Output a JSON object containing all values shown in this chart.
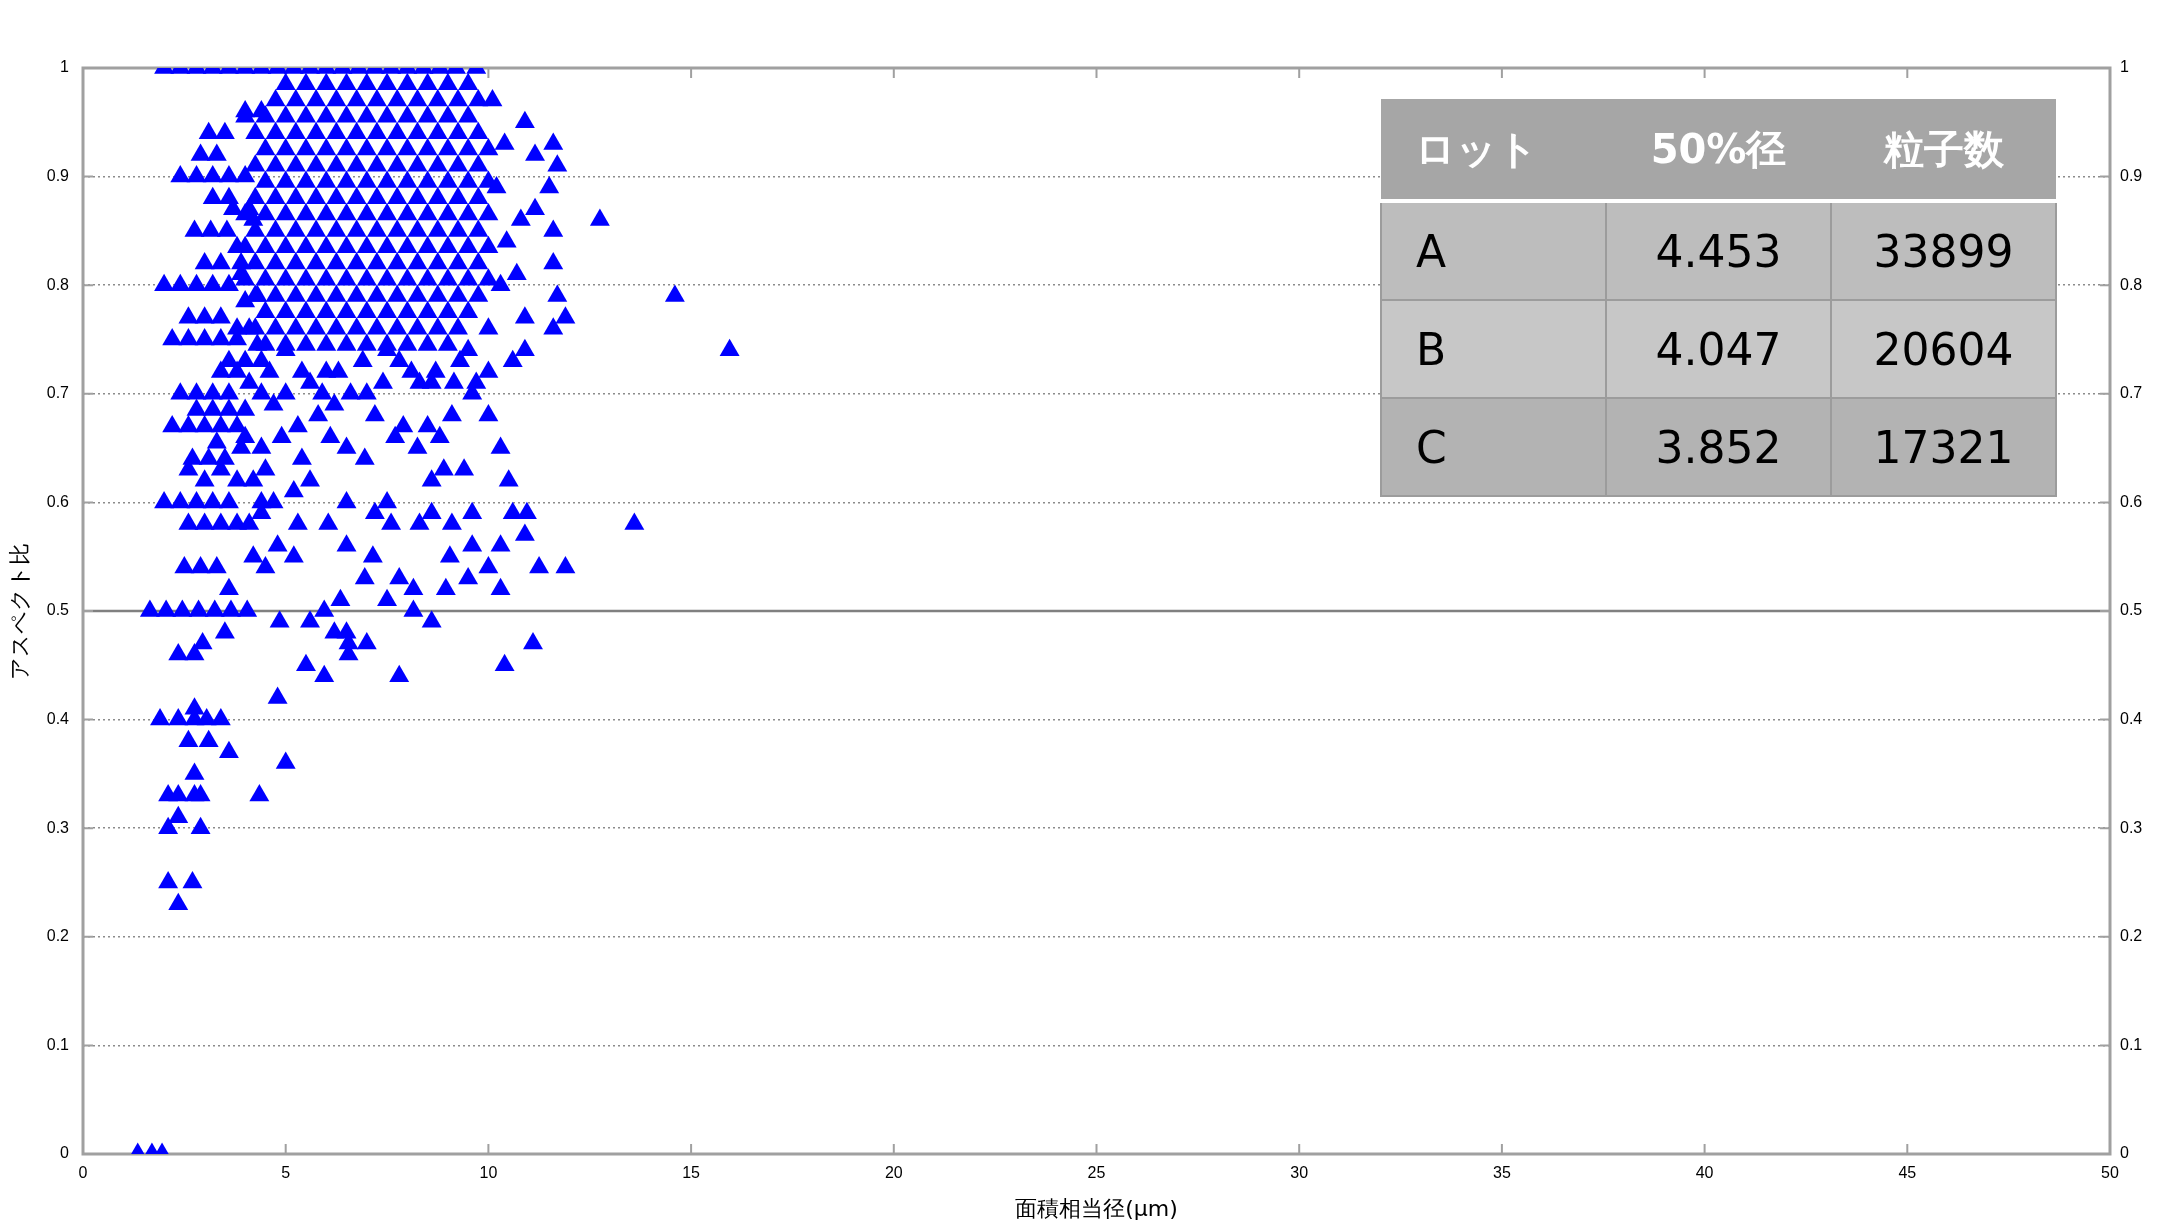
{
  "chart_data": [
    {
      "type": "scatter",
      "xlabel": "面積相当径(μm)",
      "ylabel": "アスペクト比",
      "color": "#0000ff",
      "marker": "triangle",
      "x": [
        2.0,
        2.4,
        2.8,
        3.2,
        3.6,
        4.0,
        4.4,
        4.8,
        5.2,
        5.6,
        6.0,
        6.4,
        6.8,
        7.2,
        7.6,
        8.0,
        8.4,
        8.8,
        9.2,
        9.7,
        4.0,
        4.4,
        3.1,
        3.5,
        2.9,
        3.3,
        2.4,
        2.8,
        3.2,
        3.6,
        4.0,
        3.2,
        3.6,
        2.75,
        3.15,
        3.55,
        3.0,
        3.4,
        2.0,
        2.4,
        2.8,
        3.2,
        3.6,
        2.6,
        3.0,
        3.4,
        2.2,
        2.6,
        3.0,
        3.4,
        3.8,
        3.6,
        4.0,
        2.4,
        2.8,
        3.2,
        3.6,
        2.2,
        2.6,
        3.0,
        3.4,
        3.8,
        2.7,
        3.1,
        3.5,
        3.0,
        3.8,
        2.0,
        2.4,
        2.8,
        3.2,
        3.6,
        2.6,
        3.0,
        3.4,
        3.8,
        4.2,
        3.9,
        4.3,
        4.1,
        4.4,
        4.0,
        4.4,
        4.2,
        4.6,
        3.7,
        4.1,
        3.8,
        3.9,
        4.0,
        3.8,
        4.3,
        4.4,
        3.4,
        3.8,
        4.1,
        2.8,
        3.2,
        3.6,
        4.0,
        3.3,
        3.9,
        2.6,
        3.4,
        4.4,
        4.1,
        5.0,
        5.5,
        6.0,
        6.5,
        7.0,
        7.5,
        8.0,
        8.5,
        9.0,
        9.5,
        4.75,
        5.25,
        5.75,
        6.25,
        6.75,
        7.25,
        7.75,
        8.25,
        8.75,
        9.25,
        9.75,
        4.0,
        4.5,
        5.0,
        5.5,
        6.0,
        6.5,
        7.0,
        7.5,
        8.0,
        8.5,
        9.0,
        9.5,
        4.25,
        4.75,
        5.25,
        5.75,
        6.25,
        6.75,
        7.25,
        7.75,
        8.25,
        8.75,
        9.25,
        9.75,
        4.5,
        5.0,
        5.5,
        6.0,
        6.5,
        7.0,
        7.5,
        8.0,
        8.5,
        9.0,
        9.5,
        10.0,
        4.25,
        4.75,
        5.25,
        5.75,
        6.25,
        6.75,
        7.25,
        7.75,
        8.25,
        8.75,
        9.25,
        9.75,
        4.5,
        5.0,
        5.5,
        6.0,
        6.5,
        7.0,
        7.5,
        8.0,
        8.5,
        9.0,
        9.5,
        10.0,
        4.25,
        4.75,
        5.25,
        5.75,
        6.25,
        6.75,
        7.25,
        7.75,
        8.25,
        8.75,
        9.25,
        9.75,
        4.0,
        4.5,
        5.0,
        5.5,
        6.0,
        6.5,
        7.0,
        7.5,
        8.0,
        8.5,
        9.0,
        9.5,
        10.0,
        4.25,
        4.75,
        5.25,
        5.75,
        6.25,
        6.75,
        7.25,
        7.75,
        8.25,
        8.75,
        9.25,
        9.75,
        4.0,
        4.5,
        5.0,
        5.5,
        6.0,
        6.5,
        7.0,
        7.5,
        8.0,
        8.5,
        9.0,
        9.5,
        10.0,
        4.25,
        4.75,
        5.25,
        5.75,
        6.25,
        6.75,
        7.25,
        7.75,
        8.25,
        8.75,
        9.25,
        9.75,
        4.0,
        4.5,
        5.0,
        5.5,
        6.0,
        6.5,
        7.0,
        7.5,
        8.0,
        8.5,
        9.0,
        9.5,
        10.0,
        4.25,
        4.75,
        5.25,
        5.75,
        6.25,
        6.75,
        7.25,
        7.75,
        8.25,
        8.75,
        9.25,
        9.75,
        4.5,
        5.0,
        5.5,
        6.0,
        6.5,
        7.0,
        7.5,
        8.0,
        8.5,
        9.0,
        9.5,
        4.25,
        4.75,
        5.25,
        5.75,
        6.25,
        6.75,
        7.25,
        7.75,
        8.25,
        8.75,
        9.25,
        4.5,
        5.0,
        5.5,
        6.0,
        6.5,
        7.0,
        7.5,
        8.0,
        8.5,
        9.0,
        5.0,
        6.0,
        6.9,
        7.5,
        8.1,
        8.7,
        9.3,
        10.1,
        10.4,
        10.45,
        10.2,
        10.3,
        10.0,
        12.75,
        14.6,
        15.95,
        10.9,
        11.6,
        11.7,
        11.15,
        11.5,
        11.15,
        11.6,
        11.6,
        11.7,
        11.9,
        11.6,
        10.9,
        10.9,
        10.6,
        10.7,
        10.8,
        10.0,
        10.3,
        10.5,
        9.6,
        9.1,
        10.0,
        10.95,
        5.8,
        5.3,
        6.1,
        6.5,
        6.95,
        7.2,
        7.9,
        8.5,
        7.7,
        8.25,
        8.8,
        8.9,
        9.4,
        5.6,
        6.5,
        7.5,
        8.6,
        4.7,
        5.2,
        4.5,
        4.4,
        9.6,
        10.6,
        8.6,
        7.2,
        6.05,
        5.4,
        6.6,
        7.4,
        9.15,
        8.3,
        9.7,
        5.6,
        4.7,
        4.2,
        4.8,
        5.2,
        4.5,
        6.5,
        7.15,
        9.05,
        9.6,
        10.3,
        10.9,
        5.95,
        6.35,
        6.95,
        7.5,
        7.8,
        8.15,
        8.95,
        9.5,
        10.0,
        10.3,
        11.25,
        11.9,
        13.6,
        4.85,
        5.6,
        6.2,
        6.5,
        6.55,
        6.55,
        7.0,
        8.15,
        8.6,
        5.5,
        5.95,
        7.8,
        10.4,
        11.1,
        4.8,
        5.0,
        4.35,
        5.3,
        7.6,
        8.3,
        9.1,
        2.5,
        2.9,
        3.3,
        3.6,
        1.65,
        2.05,
        2.45,
        2.85,
        3.25,
        3.65,
        4.05,
        3.5,
        2.35,
        2.75,
        2.95,
        1.9,
        2.35,
        2.75,
        3.05,
        3.4,
        2.75,
        2.6,
        3.1,
        3.6,
        2.75,
        2.1,
        2.35,
        2.75,
        2.9,
        2.35,
        2.1,
        2.9,
        2.1,
        2.7,
        2.35,
        1.35,
        1.7,
        1.95,
        5.0,
        5.4,
        6.3,
        5.9,
        4.9,
        6.2,
        7.0,
        7.8,
        8.6,
        9.5
      ],
      "values": [
        1,
        1,
        1,
        1,
        1,
        1,
        1,
        1,
        1,
        1,
        1,
        1,
        1,
        1,
        1,
        1,
        1,
        1,
        1,
        1,
        0.96,
        0.96,
        0.94,
        0.94,
        0.92,
        0.92,
        0.9,
        0.9,
        0.9,
        0.9,
        0.9,
        0.88,
        0.88,
        0.85,
        0.85,
        0.85,
        0.82,
        0.82,
        0.8,
        0.8,
        0.8,
        0.8,
        0.8,
        0.77,
        0.77,
        0.77,
        0.75,
        0.75,
        0.75,
        0.75,
        0.75,
        0.73,
        0.73,
        0.7,
        0.7,
        0.7,
        0.7,
        0.67,
        0.67,
        0.67,
        0.67,
        0.67,
        0.64,
        0.64,
        0.64,
        0.62,
        0.62,
        0.6,
        0.6,
        0.6,
        0.6,
        0.6,
        0.58,
        0.58,
        0.58,
        0.58,
        0.86,
        0.82,
        0.79,
        0.76,
        0.7,
        0.66,
        0.65,
        0.62,
        0.72,
        0.87,
        0.87,
        0.835,
        0.81,
        0.785,
        0.76,
        0.745,
        0.73,
        0.72,
        0.72,
        0.71,
        0.685,
        0.685,
        0.685,
        0.685,
        0.655,
        0.65,
        0.63,
        0.63,
        0.6,
        0.58,
        0.985,
        0.985,
        0.985,
        0.985,
        0.985,
        0.985,
        0.985,
        0.985,
        0.985,
        0.985,
        0.97,
        0.97,
        0.97,
        0.97,
        0.97,
        0.97,
        0.97,
        0.97,
        0.97,
        0.97,
        0.97,
        0.955,
        0.955,
        0.955,
        0.955,
        0.955,
        0.955,
        0.955,
        0.955,
        0.955,
        0.955,
        0.955,
        0.955,
        0.94,
        0.94,
        0.94,
        0.94,
        0.94,
        0.94,
        0.94,
        0.94,
        0.94,
        0.94,
        0.94,
        0.94,
        0.925,
        0.925,
        0.925,
        0.925,
        0.925,
        0.925,
        0.925,
        0.925,
        0.925,
        0.925,
        0.925,
        0.925,
        0.91,
        0.91,
        0.91,
        0.91,
        0.91,
        0.91,
        0.91,
        0.91,
        0.91,
        0.91,
        0.91,
        0.91,
        0.895,
        0.895,
        0.895,
        0.895,
        0.895,
        0.895,
        0.895,
        0.895,
        0.895,
        0.895,
        0.895,
        0.895,
        0.88,
        0.88,
        0.88,
        0.88,
        0.88,
        0.88,
        0.88,
        0.88,
        0.88,
        0.88,
        0.88,
        0.88,
        0.865,
        0.865,
        0.865,
        0.865,
        0.865,
        0.865,
        0.865,
        0.865,
        0.865,
        0.865,
        0.865,
        0.865,
        0.865,
        0.85,
        0.85,
        0.85,
        0.85,
        0.85,
        0.85,
        0.85,
        0.85,
        0.85,
        0.85,
        0.85,
        0.85,
        0.835,
        0.835,
        0.835,
        0.835,
        0.835,
        0.835,
        0.835,
        0.835,
        0.835,
        0.835,
        0.835,
        0.835,
        0.835,
        0.82,
        0.82,
        0.82,
        0.82,
        0.82,
        0.82,
        0.82,
        0.82,
        0.82,
        0.82,
        0.82,
        0.82,
        0.805,
        0.805,
        0.805,
        0.805,
        0.805,
        0.805,
        0.805,
        0.805,
        0.805,
        0.805,
        0.805,
        0.805,
        0.805,
        0.79,
        0.79,
        0.79,
        0.79,
        0.79,
        0.79,
        0.79,
        0.79,
        0.79,
        0.79,
        0.79,
        0.79,
        0.775,
        0.775,
        0.775,
        0.775,
        0.775,
        0.775,
        0.775,
        0.775,
        0.775,
        0.775,
        0.775,
        0.76,
        0.76,
        0.76,
        0.76,
        0.76,
        0.76,
        0.76,
        0.76,
        0.76,
        0.76,
        0.76,
        0.745,
        0.745,
        0.745,
        0.745,
        0.745,
        0.745,
        0.745,
        0.745,
        0.745,
        0.745,
        0.74,
        0.72,
        0.73,
        0.74,
        0.72,
        0.72,
        0.73,
        0.97,
        0.93,
        0.84,
        0.89,
        0.8,
        0.76,
        0.86,
        0.79,
        0.74,
        0.95,
        0.93,
        0.91,
        0.92,
        0.89,
        0.87,
        0.85,
        0.82,
        0.79,
        0.77,
        0.76,
        0.77,
        0.74,
        0.73,
        0.81,
        0.86,
        0.68,
        0.65,
        0.62,
        0.7,
        0.68,
        0.72,
        0.59,
        0.68,
        0.67,
        0.66,
        0.65,
        0.64,
        0.68,
        0.67,
        0.67,
        0.66,
        0.65,
        0.66,
        0.63,
        0.63,
        0.62,
        0.6,
        0.6,
        0.62,
        0.6,
        0.61,
        0.63,
        0.59,
        0.59,
        0.59,
        0.59,
        0.59,
        0.58,
        0.64,
        0.7,
        0.71,
        0.71,
        0.71,
        0.71,
        0.71,
        0.69,
        0.55,
        0.56,
        0.55,
        0.54,
        0.56,
        0.55,
        0.55,
        0.56,
        0.56,
        0.57,
        0.5,
        0.51,
        0.53,
        0.51,
        0.53,
        0.52,
        0.52,
        0.53,
        0.54,
        0.52,
        0.54,
        0.54,
        0.58,
        0.49,
        0.49,
        0.48,
        0.48,
        0.46,
        0.47,
        0.47,
        0.5,
        0.49,
        0.45,
        0.44,
        0.44,
        0.45,
        0.47,
        0.42,
        0.36,
        0.33,
        0.58,
        0.58,
        0.58,
        0.58,
        0.54,
        0.54,
        0.54,
        0.52,
        0.5,
        0.5,
        0.5,
        0.5,
        0.5,
        0.5,
        0.5,
        0.48,
        0.46,
        0.46,
        0.47,
        0.4,
        0.4,
        0.4,
        0.4,
        0.4,
        0.41,
        0.38,
        0.38,
        0.37,
        0.35,
        0.33,
        0.33,
        0.33,
        0.33,
        0.31,
        0.3,
        0.3,
        0.25,
        0.25,
        0.23,
        0,
        0,
        0,
        0.7,
        0.72,
        0.72,
        0.7,
        0.66,
        0.69,
        0.7,
        0.73,
        0.71,
        0.74
      ],
      "xlim": [
        0,
        50
      ],
      "xticks": [
        0,
        5,
        10,
        15,
        20,
        25,
        30,
        35,
        40,
        45,
        50
      ],
      "ylim": [
        0,
        1
      ],
      "yticks": [
        0,
        0.1,
        0.2,
        0.3,
        0.4,
        0.5,
        0.6,
        0.7,
        0.8,
        0.9,
        1
      ],
      "y2lim": [
        0,
        1
      ],
      "y2ticks": [
        0,
        0.1,
        0.2,
        0.3,
        0.4,
        0.5,
        0.6,
        0.7,
        0.8,
        0.9,
        1
      ],
      "grid": "y",
      "ref_lines": [
        {
          "axis": "y",
          "value": 0.5,
          "color": "#808080",
          "line_style": "solid"
        }
      ]
    },
    {
      "type": "other",
      "xlabel": "ロット",
      "categories": [
        "A",
        "B",
        "C"
      ],
      "data_labels": true,
      "series": [
        {
          "name": "50%径",
          "values": [
            4.453,
            4.047,
            3.852
          ],
          "colors": [
            "#bdbdbd",
            "#c7c7c7",
            "#b3b3b3"
          ]
        },
        {
          "name": "粒子数",
          "values": [
            33899,
            20604,
            17321
          ],
          "colors": [
            "#bdbdbd",
            "#c7c7c7",
            "#b3b3b3"
          ]
        }
      ]
    }
  ]
}
